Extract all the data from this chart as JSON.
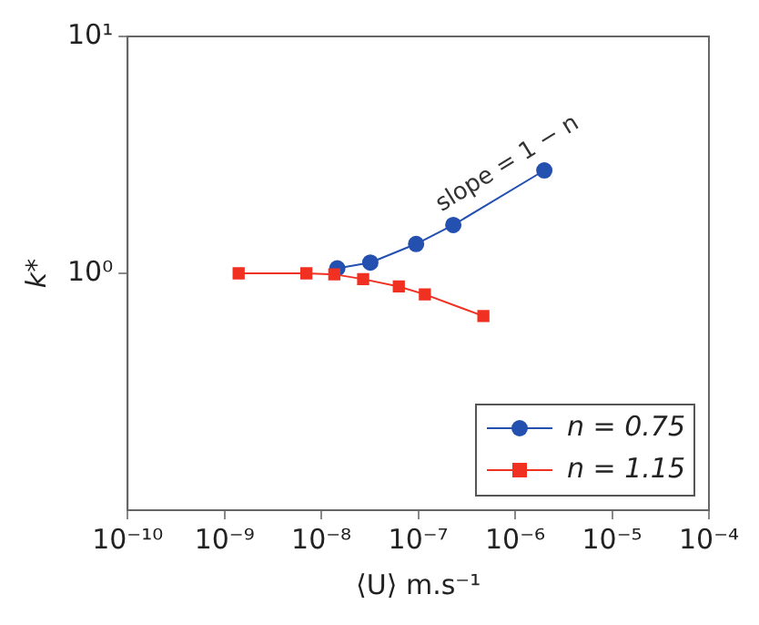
{
  "chart_data": {
    "type": "line",
    "xlabel": "⟨U⟩ m.s⁻¹",
    "ylabel": "k*",
    "log": "xy",
    "grid": false,
    "legend": "bottom right",
    "line_style": "solid",
    "xlim": [
      1e-10,
      0.0001
    ],
    "xticks": [
      {
        "value": 1e-10,
        "label": "10⁻¹⁰"
      },
      {
        "value": 1e-09,
        "label": "10⁻⁹"
      },
      {
        "value": 1e-08,
        "label": "10⁻⁸"
      },
      {
        "value": 1e-07,
        "label": "10⁻⁷"
      },
      {
        "value": 1e-06,
        "label": "10⁻⁶"
      },
      {
        "value": 1e-05,
        "label": "10⁻⁵"
      },
      {
        "value": 0.0001,
        "label": "10⁻⁴"
      }
    ],
    "ylim": [
      0.1,
      10
    ],
    "yticks": [
      {
        "value": 1,
        "label": "10⁰"
      },
      {
        "value": 10,
        "label": "10¹"
      }
    ],
    "annotations": [
      "slope = 1 − n"
    ],
    "series": [
      {
        "name": "n = 0.75",
        "color": "#2450b0",
        "marker": "circle",
        "x": [
          1.46e-08,
          3.2e-08,
          9.5e-08,
          2.3e-07,
          2e-06
        ],
        "values": [
          1.05,
          1.11,
          1.33,
          1.6,
          2.72
        ]
      },
      {
        "name": "n = 1.15",
        "color": "#f03020",
        "marker": "square",
        "x": [
          1.4e-09,
          7e-09,
          1.36e-08,
          2.7e-08,
          6.3e-08,
          1.17e-07,
          4.7e-07
        ],
        "values": [
          1,
          1,
          0.99,
          0.945,
          0.88,
          0.815,
          0.66
        ]
      }
    ]
  }
}
